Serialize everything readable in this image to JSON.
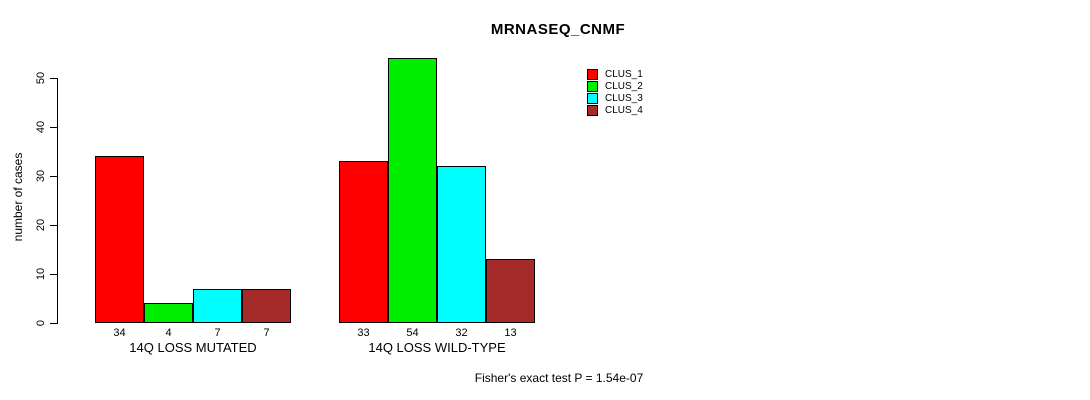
{
  "title": "MRNASEQ_CNMF",
  "chart_data": {
    "type": "bar",
    "title": "MRNASEQ_CNMF",
    "ylabel": "number of cases",
    "ylim": [
      0,
      50
    ],
    "yticks": [
      0,
      10,
      20,
      30,
      40,
      50
    ],
    "categories": [
      "14Q LOSS MUTATED",
      "14Q LOSS WILD-TYPE"
    ],
    "series": [
      {
        "name": "CLUS_1",
        "color": "#ff0000",
        "values": [
          34,
          33
        ]
      },
      {
        "name": "CLUS_2",
        "color": "#00ee00",
        "values": [
          4,
          54
        ]
      },
      {
        "name": "CLUS_3",
        "color": "#00ffff",
        "values": [
          7,
          32
        ]
      },
      {
        "name": "CLUS_4",
        "color": "#a52a2a",
        "values": [
          7,
          13
        ]
      }
    ],
    "bar_value_labels": [
      [
        34,
        4,
        7,
        7
      ],
      [
        33,
        54,
        32,
        13
      ]
    ],
    "legend_position": "top-right",
    "grid": "off",
    "annotation": "Fisher's exact test P = 1.54e-07"
  }
}
